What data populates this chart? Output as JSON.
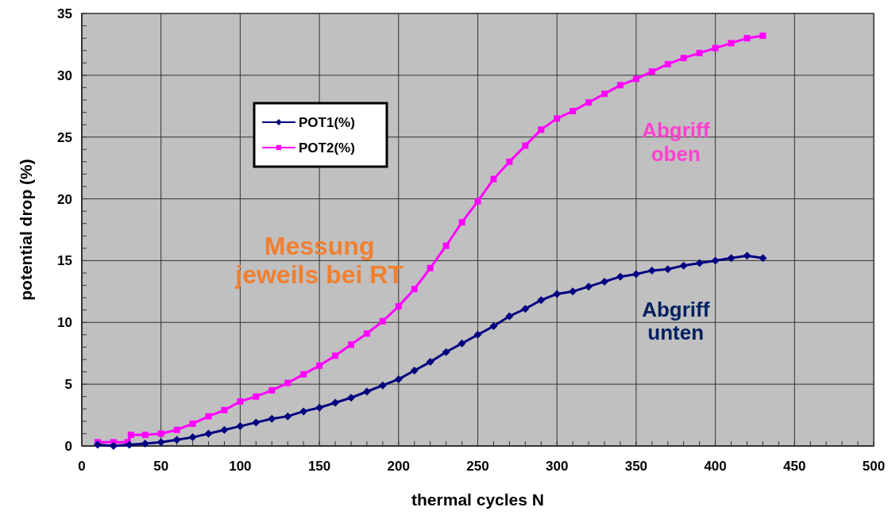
{
  "chart_data": {
    "type": "line",
    "xlabel": "thermal cycles N",
    "ylabel": "potential drop (%)",
    "xlim": [
      0,
      500
    ],
    "xticks": [
      0,
      50,
      100,
      150,
      200,
      250,
      300,
      350,
      400,
      450,
      500
    ],
    "ylim": [
      0,
      35
    ],
    "yticks": [
      0,
      5,
      10,
      15,
      20,
      25,
      30,
      35
    ],
    "grid": true,
    "legend": "top left",
    "annotations": [
      "Messung\njeweils bei RT",
      "Abgriff\noben",
      "Abgriff\nunten"
    ],
    "series": [
      {
        "name": "POT1(%)",
        "color": "#000080",
        "marker": "diamond",
        "x": [
          10,
          20,
          30,
          40,
          50,
          60,
          70,
          80,
          90,
          100,
          110,
          120,
          130,
          140,
          150,
          160,
          170,
          180,
          190,
          200,
          210,
          220,
          230,
          240,
          250,
          260,
          270,
          280,
          290,
          300,
          310,
          320,
          330,
          340,
          350,
          360,
          370,
          380,
          390,
          400,
          410,
          420,
          430
        ],
        "values": [
          0.1,
          0.0,
          0.1,
          0.2,
          0.3,
          0.5,
          0.7,
          1.0,
          1.3,
          1.6,
          1.9,
          2.2,
          2.4,
          2.8,
          3.1,
          3.5,
          3.9,
          4.4,
          4.9,
          5.4,
          6.1,
          6.8,
          7.6,
          8.3,
          9.0,
          9.7,
          10.5,
          11.1,
          11.8,
          12.3,
          12.5,
          12.9,
          13.3,
          13.7,
          13.9,
          14.2,
          14.3,
          14.6,
          14.8,
          15.0,
          15.2,
          15.4,
          15.2
        ]
      },
      {
        "name": "POT2(%)",
        "color": "#ff00ff",
        "marker": "square",
        "x": [
          10,
          20,
          29,
          31,
          40,
          50,
          60,
          70,
          80,
          90,
          100,
          110,
          120,
          130,
          140,
          150,
          160,
          170,
          180,
          190,
          200,
          210,
          220,
          230,
          240,
          250,
          260,
          270,
          280,
          290,
          300,
          310,
          320,
          330,
          340,
          350,
          360,
          370,
          380,
          390,
          400,
          410,
          420,
          430
        ],
        "values": [
          0.3,
          0.3,
          0.3,
          0.9,
          0.9,
          1.0,
          1.3,
          1.8,
          2.4,
          2.9,
          3.6,
          4.0,
          4.5,
          5.1,
          5.8,
          6.5,
          7.3,
          8.2,
          9.1,
          10.1,
          11.3,
          12.7,
          14.4,
          16.2,
          18.1,
          19.8,
          21.6,
          23.0,
          24.3,
          25.6,
          26.5,
          27.1,
          27.8,
          28.5,
          29.2,
          29.7,
          30.3,
          30.9,
          31.4,
          31.8,
          32.2,
          32.6,
          33.0,
          33.2
        ]
      }
    ]
  }
}
